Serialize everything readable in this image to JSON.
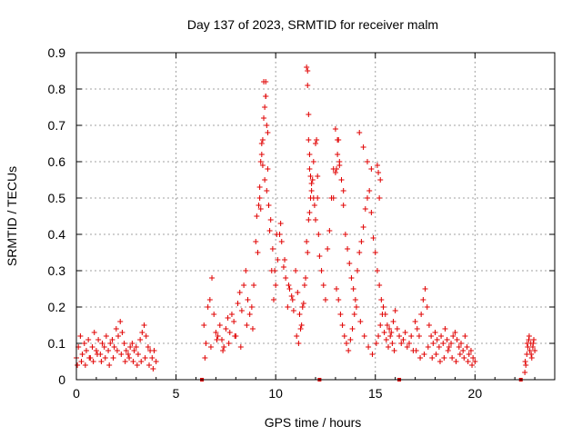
{
  "chart_data": {
    "type": "scatter",
    "title": "Day 137 of 2023, SRMTID for receiver malm",
    "xlabel": "GPS time / hours",
    "ylabel": "SRMTID / TECUs",
    "xlim": [
      0,
      24
    ],
    "ylim": [
      0,
      0.9
    ],
    "xticks": [
      0,
      5,
      10,
      15,
      20
    ],
    "xtick_labels": [
      "0",
      "5",
      "10",
      "15",
      "20"
    ],
    "yticks": [
      0,
      0.1,
      0.2,
      0.3,
      0.4,
      0.5,
      0.6,
      0.7,
      0.8,
      0.9
    ],
    "ytick_labels": [
      "0",
      "0.1",
      "0.2",
      "0.3",
      "0.4",
      "0.5",
      "0.6",
      "0.7",
      "0.8",
      "0.9"
    ],
    "grid": true,
    "marker": "+",
    "color": "#e00000",
    "gap_markers_x": [
      6.3,
      12.2,
      16.2,
      22.3
    ],
    "series": [
      {
        "name": "SRMTID",
        "x": [
          0.0,
          0.1,
          0.2,
          0.3,
          0.4,
          0.5,
          0.6,
          0.7,
          0.8,
          0.9,
          1.0,
          1.1,
          1.2,
          1.3,
          1.4,
          1.5,
          1.6,
          1.7,
          1.8,
          1.9,
          2.0,
          2.1,
          2.2,
          2.3,
          2.4,
          2.5,
          2.6,
          2.7,
          2.8,
          2.9,
          3.0,
          3.1,
          3.2,
          3.3,
          3.4,
          3.5,
          3.6,
          3.7,
          3.8,
          3.9,
          4.0,
          0.05,
          0.25,
          0.45,
          0.65,
          0.85,
          1.05,
          1.25,
          1.45,
          1.65,
          1.85,
          2.05,
          2.25,
          2.45,
          2.65,
          2.85,
          3.05,
          3.25,
          3.45,
          3.65,
          3.85,
          6.4,
          6.5,
          6.6,
          6.7,
          6.8,
          6.9,
          7.0,
          7.1,
          7.2,
          7.3,
          7.4,
          7.5,
          7.6,
          7.7,
          7.8,
          7.9,
          8.0,
          8.1,
          8.2,
          8.3,
          8.4,
          8.5,
          8.6,
          8.7,
          8.8,
          8.9,
          6.45,
          6.75,
          7.05,
          7.35,
          7.65,
          7.95,
          8.25,
          8.55,
          8.85,
          9.0,
          9.1,
          9.2,
          9.3,
          9.4,
          9.5,
          9.6,
          9.7,
          9.8,
          9.9,
          10.0,
          10.1,
          10.2,
          10.3,
          10.4,
          10.5,
          10.6,
          10.7,
          10.8,
          10.9,
          9.05,
          9.15,
          9.25,
          9.35,
          9.45,
          9.55,
          9.65,
          9.75,
          9.85,
          9.95,
          10.05,
          10.25,
          10.45,
          10.65,
          10.85,
          9.4,
          9.45,
          9.5,
          9.5,
          9.55,
          9.3,
          9.35,
          9.6,
          9.2,
          9.25,
          11.0,
          11.1,
          11.2,
          11.3,
          11.4,
          11.5,
          11.6,
          11.7,
          11.8,
          11.9,
          12.0,
          12.1,
          12.2,
          12.3,
          12.4,
          12.5,
          12.6,
          12.7,
          12.8,
          12.9,
          11.05,
          11.15,
          11.25,
          11.35,
          11.45,
          11.55,
          11.65,
          11.75,
          11.85,
          11.95,
          12.05,
          12.15,
          11.55,
          11.6,
          11.6,
          11.65,
          11.65,
          11.7,
          11.7,
          11.75,
          11.8,
          11.9,
          12.0,
          12.1,
          13.0,
          13.1,
          13.2,
          13.3,
          13.4,
          13.5,
          13.6,
          13.7,
          13.8,
          13.9,
          14.0,
          14.1,
          14.2,
          14.3,
          14.4,
          14.5,
          14.6,
          14.7,
          14.8,
          14.9,
          13.05,
          13.15,
          13.25,
          13.35,
          13.45,
          13.55,
          13.65,
          13.75,
          13.85,
          13.95,
          14.05,
          14.25,
          14.45,
          14.65,
          14.85,
          12.9,
          13.0,
          13.05,
          13.1,
          13.15,
          13.2,
          13.3,
          13.4,
          15.0,
          15.1,
          15.2,
          15.3,
          15.4,
          15.5,
          15.6,
          15.7,
          15.8,
          15.9,
          16.0,
          16.1,
          16.2,
          16.3,
          16.4,
          16.5,
          16.6,
          16.7,
          16.8,
          16.9,
          15.05,
          15.15,
          15.25,
          15.35,
          15.45,
          15.55,
          15.65,
          15.75,
          15.85,
          15.95,
          15.1,
          15.15,
          15.2,
          15.25,
          14.2,
          14.4,
          14.6,
          14.8,
          17.0,
          17.1,
          17.2,
          17.3,
          17.4,
          17.5,
          17.6,
          17.7,
          17.8,
          17.9,
          18.0,
          18.1,
          18.2,
          18.3,
          18.4,
          18.5,
          18.6,
          18.7,
          18.8,
          18.9,
          19.0,
          19.1,
          19.2,
          19.3,
          19.4,
          19.5,
          19.6,
          19.7,
          19.8,
          19.9,
          20.0,
          17.05,
          17.25,
          17.45,
          17.65,
          17.85,
          18.05,
          18.25,
          18.45,
          18.65,
          18.85,
          19.05,
          19.25,
          19.45,
          19.65,
          19.85,
          22.5,
          22.55,
          22.6,
          22.65,
          22.7,
          22.75,
          22.8,
          22.85,
          22.9,
          22.95,
          23.0,
          22.52,
          22.62,
          22.72,
          22.82,
          22.92
        ],
        "y": [
          0.06,
          0.09,
          0.12,
          0.07,
          0.1,
          0.08,
          0.11,
          0.06,
          0.09,
          0.13,
          0.08,
          0.11,
          0.07,
          0.1,
          0.09,
          0.12,
          0.08,
          0.1,
          0.11,
          0.09,
          0.14,
          0.12,
          0.16,
          0.13,
          0.1,
          0.08,
          0.07,
          0.09,
          0.1,
          0.08,
          0.09,
          0.07,
          0.11,
          0.13,
          0.15,
          0.12,
          0.09,
          0.08,
          0.06,
          0.08,
          0.05,
          0.04,
          0.05,
          0.04,
          0.06,
          0.05,
          0.07,
          0.05,
          0.06,
          0.04,
          0.06,
          0.08,
          0.07,
          0.05,
          0.06,
          0.05,
          0.04,
          0.05,
          0.06,
          0.04,
          0.03,
          0.15,
          0.1,
          0.2,
          0.22,
          0.28,
          0.18,
          0.13,
          0.12,
          0.15,
          0.11,
          0.09,
          0.14,
          0.17,
          0.13,
          0.18,
          0.16,
          0.12,
          0.21,
          0.24,
          0.19,
          0.26,
          0.3,
          0.22,
          0.18,
          0.2,
          0.26,
          0.06,
          0.09,
          0.11,
          0.08,
          0.1,
          0.12,
          0.09,
          0.15,
          0.14,
          0.38,
          0.35,
          0.5,
          0.62,
          0.72,
          0.78,
          0.58,
          0.41,
          0.3,
          0.22,
          0.26,
          0.33,
          0.4,
          0.38,
          0.31,
          0.28,
          0.2,
          0.25,
          0.23,
          0.19,
          0.45,
          0.48,
          0.6,
          0.66,
          0.55,
          0.52,
          0.48,
          0.44,
          0.36,
          0.3,
          0.4,
          0.43,
          0.33,
          0.26,
          0.22,
          0.82,
          0.75,
          0.78,
          0.82,
          0.7,
          0.65,
          0.59,
          0.68,
          0.53,
          0.47,
          0.3,
          0.24,
          0.18,
          0.15,
          0.21,
          0.28,
          0.35,
          0.46,
          0.52,
          0.5,
          0.44,
          0.56,
          0.34,
          0.3,
          0.26,
          0.22,
          0.36,
          0.41,
          0.5,
          0.58,
          0.12,
          0.1,
          0.14,
          0.2,
          0.26,
          0.38,
          0.44,
          0.5,
          0.55,
          0.48,
          0.66,
          0.4,
          0.86,
          0.85,
          0.81,
          0.73,
          0.66,
          0.62,
          0.58,
          0.56,
          0.54,
          0.6,
          0.65,
          0.5,
          0.69,
          0.66,
          0.6,
          0.55,
          0.48,
          0.4,
          0.36,
          0.32,
          0.28,
          0.25,
          0.22,
          0.3,
          0.35,
          0.38,
          0.42,
          0.47,
          0.5,
          0.52,
          0.46,
          0.39,
          0.25,
          0.22,
          0.18,
          0.15,
          0.12,
          0.1,
          0.08,
          0.11,
          0.14,
          0.18,
          0.2,
          0.16,
          0.12,
          0.09,
          0.07,
          0.5,
          0.57,
          0.58,
          0.62,
          0.66,
          0.59,
          0.55,
          0.52,
          0.35,
          0.3,
          0.26,
          0.22,
          0.2,
          0.18,
          0.15,
          0.14,
          0.13,
          0.16,
          0.19,
          0.14,
          0.12,
          0.1,
          0.11,
          0.13,
          0.09,
          0.1,
          0.12,
          0.08,
          0.1,
          0.12,
          0.15,
          0.18,
          0.13,
          0.11,
          0.09,
          0.12,
          0.1,
          0.08,
          0.59,
          0.57,
          0.5,
          0.55,
          0.68,
          0.64,
          0.6,
          0.58,
          0.16,
          0.14,
          0.12,
          0.18,
          0.22,
          0.25,
          0.2,
          0.15,
          0.12,
          0.1,
          0.13,
          0.11,
          0.09,
          0.12,
          0.1,
          0.14,
          0.11,
          0.09,
          0.1,
          0.12,
          0.13,
          0.11,
          0.09,
          0.1,
          0.08,
          0.12,
          0.09,
          0.07,
          0.08,
          0.06,
          0.05,
          0.08,
          0.06,
          0.07,
          0.09,
          0.06,
          0.07,
          0.05,
          0.06,
          0.08,
          0.06,
          0.05,
          0.07,
          0.06,
          0.05,
          0.04,
          0.02,
          0.04,
          0.07,
          0.09,
          0.11,
          0.08,
          0.1,
          0.06,
          0.09,
          0.11,
          0.08,
          0.05,
          0.1,
          0.12,
          0.07,
          0.1
        ]
      }
    ]
  }
}
